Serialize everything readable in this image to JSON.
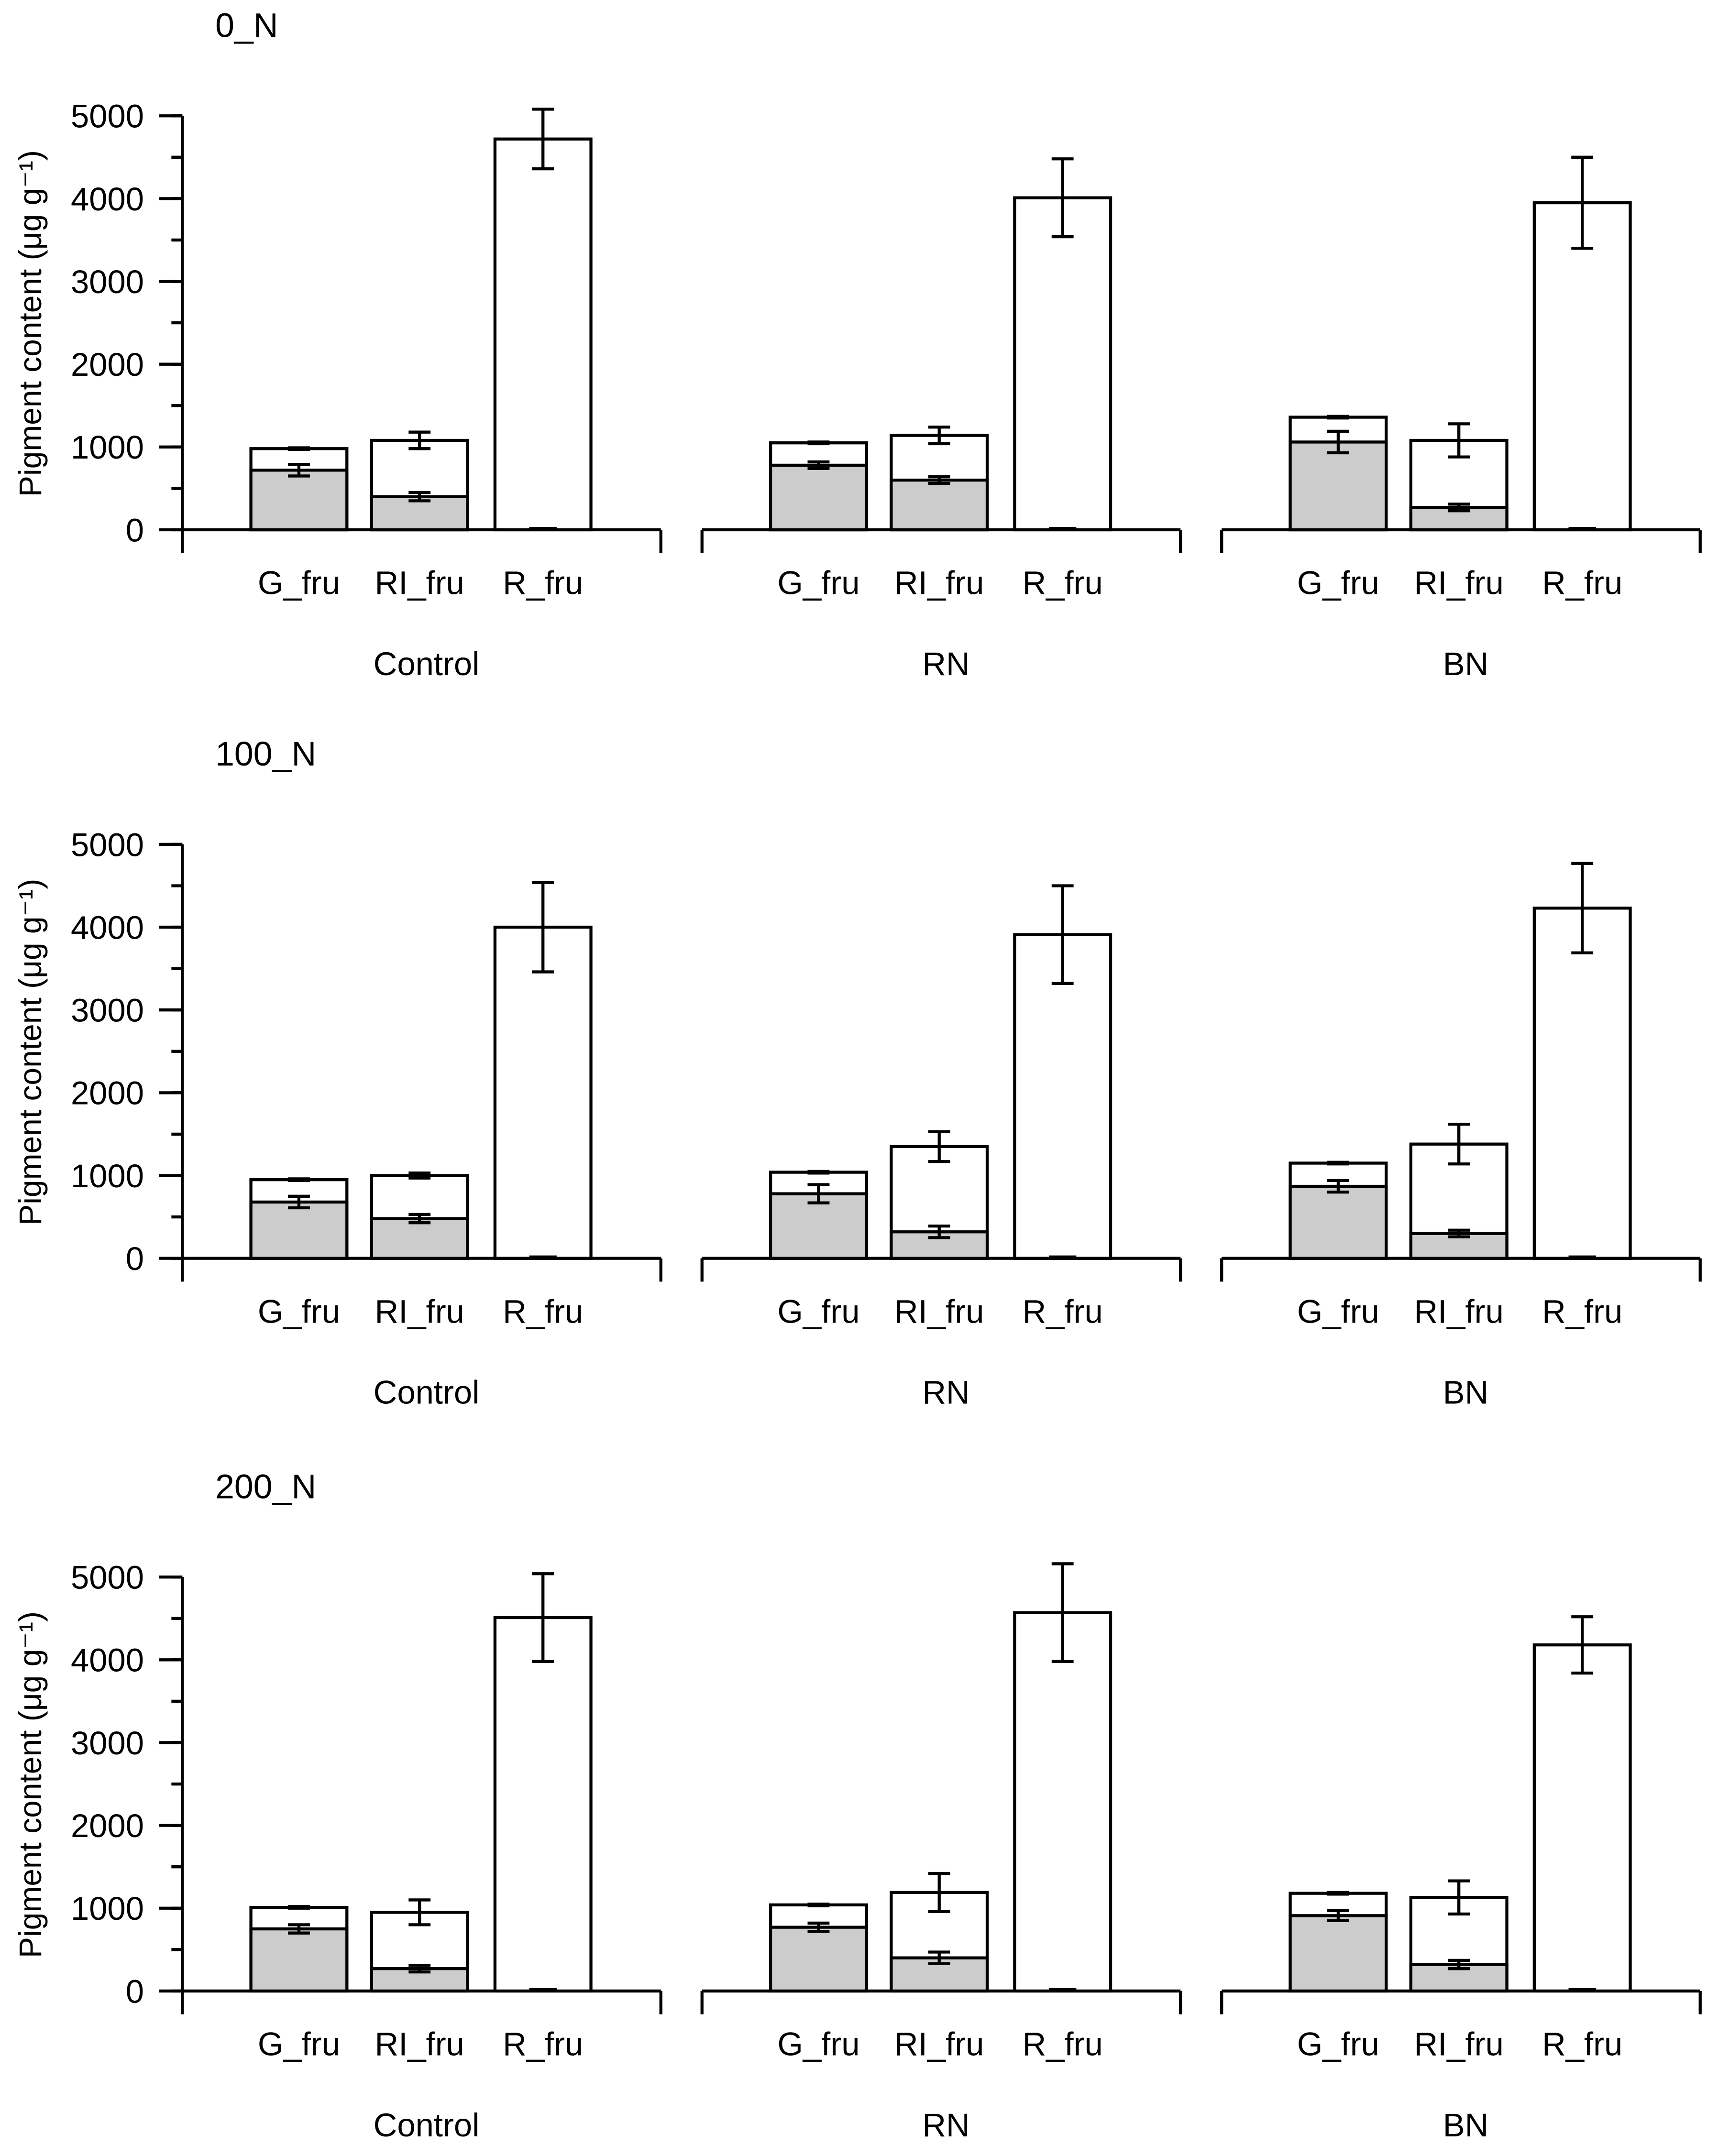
{
  "colors": {
    "grey_fill": "#cccccc",
    "white_fill": "#ffffff",
    "stroke": "#000000"
  },
  "chart_data": {
    "type": "bar",
    "stacked": true,
    "ylabel": "Pigment content (μg g⁻¹)",
    "ylim": [
      0,
      5000
    ],
    "yticks": [
      0,
      1000,
      2000,
      3000,
      4000,
      5000
    ],
    "y_minor_step": 500,
    "bar_categories": [
      "G_fru",
      "RI_fru",
      "R_fru"
    ],
    "treatments": [
      "Control",
      "RN",
      "BN"
    ],
    "panels": [
      {
        "title": "0_N",
        "groups": [
          {
            "name": "Control",
            "bottom": [
              720,
              400,
              0
            ],
            "bottom_err": [
              70,
              50,
              0
            ],
            "total": [
              980,
              1080,
              4720
            ],
            "total_err": [
              10,
              100,
              360
            ]
          },
          {
            "name": "RN",
            "bottom": [
              780,
              600,
              0
            ],
            "bottom_err": [
              40,
              40,
              0
            ],
            "total": [
              1050,
              1140,
              4010
            ],
            "total_err": [
              10,
              100,
              470
            ]
          },
          {
            "name": "BN",
            "bottom": [
              1060,
              270,
              0
            ],
            "bottom_err": [
              130,
              40,
              0
            ],
            "total": [
              1360,
              1080,
              3950
            ],
            "total_err": [
              10,
              200,
              550
            ]
          }
        ]
      },
      {
        "title": "100_N",
        "groups": [
          {
            "name": "Control",
            "bottom": [
              680,
              480,
              0
            ],
            "bottom_err": [
              70,
              50,
              0
            ],
            "total": [
              950,
              1000,
              4000
            ],
            "total_err": [
              10,
              30,
              540
            ]
          },
          {
            "name": "RN",
            "bottom": [
              780,
              320,
              0
            ],
            "bottom_err": [
              110,
              70,
              0
            ],
            "total": [
              1040,
              1350,
              3910
            ],
            "total_err": [
              10,
              180,
              590
            ]
          },
          {
            "name": "BN",
            "bottom": [
              870,
              300,
              0
            ],
            "bottom_err": [
              70,
              40,
              0
            ],
            "total": [
              1150,
              1380,
              4230
            ],
            "total_err": [
              10,
              240,
              540
            ]
          }
        ]
      },
      {
        "title": "200_N",
        "groups": [
          {
            "name": "Control",
            "bottom": [
              750,
              270,
              0
            ],
            "bottom_err": [
              50,
              40,
              0
            ],
            "total": [
              1010,
              950,
              4510
            ],
            "total_err": [
              10,
              150,
              530
            ]
          },
          {
            "name": "RN",
            "bottom": [
              770,
              400,
              0
            ],
            "bottom_err": [
              50,
              70,
              0
            ],
            "total": [
              1040,
              1190,
              4570
            ],
            "total_err": [
              10,
              230,
              590
            ]
          },
          {
            "name": "BN",
            "bottom": [
              910,
              320,
              0
            ],
            "bottom_err": [
              60,
              50,
              0
            ],
            "total": [
              1180,
              1130,
              4180
            ],
            "total_err": [
              10,
              200,
              340
            ]
          }
        ]
      }
    ]
  }
}
